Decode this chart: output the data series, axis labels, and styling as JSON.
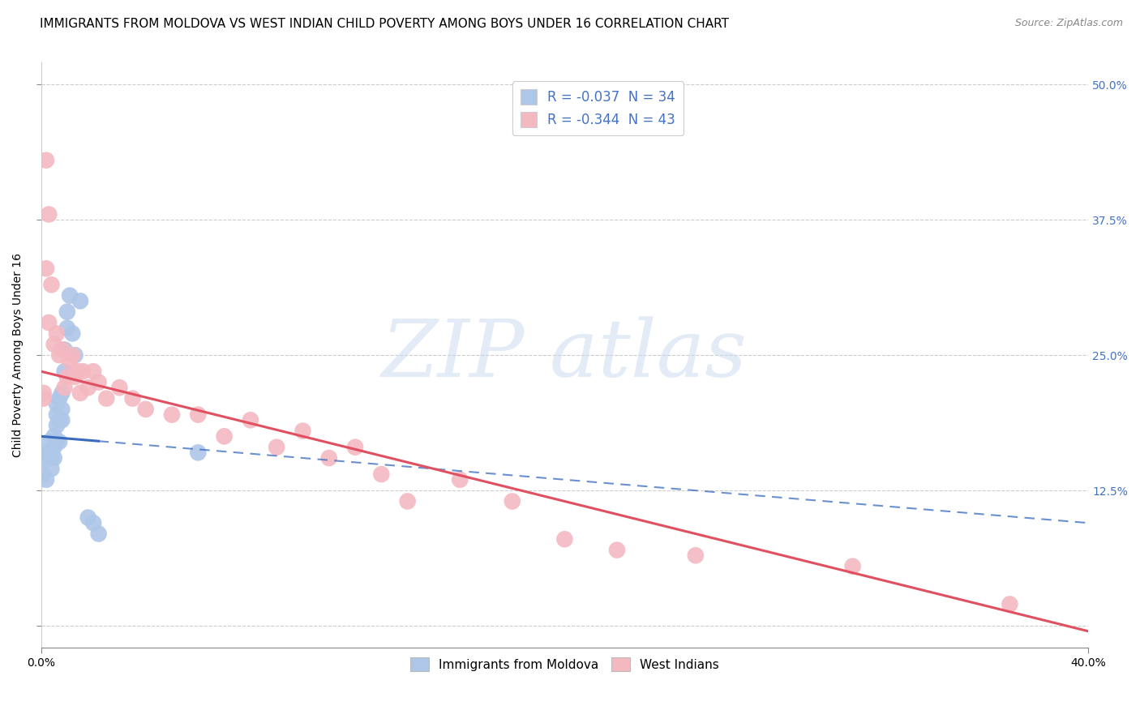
{
  "title": "IMMIGRANTS FROM MOLDOVA VS WEST INDIAN CHILD POVERTY AMONG BOYS UNDER 16 CORRELATION CHART",
  "source": "Source: ZipAtlas.com",
  "ylabel": "Child Poverty Among Boys Under 16",
  "xlim": [
    0.0,
    0.4
  ],
  "ylim": [
    -0.02,
    0.52
  ],
  "ytick_values": [
    0.0,
    0.125,
    0.25,
    0.375,
    0.5
  ],
  "ytick_labels_right": [
    "",
    "12.5%",
    "25.0%",
    "37.5%",
    "50.0%"
  ],
  "legend_items": [
    {
      "label": "R = -0.037  N = 34",
      "color": "#aec6e8"
    },
    {
      "label": "R = -0.344  N = 43",
      "color": "#f4b8c1"
    }
  ],
  "series": [
    {
      "name": "Immigrants from Moldova",
      "color": "#aec6e8",
      "line_color": "#3a6bbf",
      "dash_color": "#6699cc",
      "x": [
        0.001,
        0.001,
        0.002,
        0.002,
        0.003,
        0.003,
        0.003,
        0.004,
        0.004,
        0.005,
        0.005,
        0.005,
        0.006,
        0.006,
        0.006,
        0.006,
        0.007,
        0.007,
        0.007,
        0.008,
        0.008,
        0.008,
        0.009,
        0.009,
        0.01,
        0.01,
        0.011,
        0.012,
        0.013,
        0.015,
        0.018,
        0.02,
        0.022,
        0.06
      ],
      "y": [
        0.155,
        0.14,
        0.16,
        0.135,
        0.155,
        0.17,
        0.16,
        0.145,
        0.155,
        0.175,
        0.165,
        0.155,
        0.205,
        0.195,
        0.185,
        0.17,
        0.21,
        0.19,
        0.17,
        0.215,
        0.2,
        0.19,
        0.235,
        0.255,
        0.29,
        0.275,
        0.305,
        0.27,
        0.25,
        0.3,
        0.1,
        0.095,
        0.085,
        0.16
      ]
    },
    {
      "name": "West Indians",
      "color": "#f4b8c1",
      "line_color": "#e05060",
      "x": [
        0.001,
        0.001,
        0.002,
        0.002,
        0.003,
        0.003,
        0.004,
        0.005,
        0.006,
        0.007,
        0.008,
        0.009,
        0.01,
        0.011,
        0.012,
        0.013,
        0.014,
        0.015,
        0.016,
        0.018,
        0.02,
        0.022,
        0.025,
        0.03,
        0.035,
        0.04,
        0.05,
        0.06,
        0.07,
        0.08,
        0.09,
        0.1,
        0.11,
        0.12,
        0.13,
        0.14,
        0.16,
        0.18,
        0.2,
        0.22,
        0.25,
        0.31,
        0.37
      ],
      "y": [
        0.215,
        0.21,
        0.43,
        0.33,
        0.38,
        0.28,
        0.315,
        0.26,
        0.27,
        0.25,
        0.255,
        0.22,
        0.23,
        0.245,
        0.25,
        0.23,
        0.235,
        0.215,
        0.235,
        0.22,
        0.235,
        0.225,
        0.21,
        0.22,
        0.21,
        0.2,
        0.195,
        0.195,
        0.175,
        0.19,
        0.165,
        0.18,
        0.155,
        0.165,
        0.14,
        0.115,
        0.135,
        0.115,
        0.08,
        0.07,
        0.065,
        0.055,
        0.02
      ]
    }
  ],
  "regression": {
    "moldova": {
      "slope": -0.2,
      "intercept": 0.175
    },
    "westindians": {
      "slope": -0.6,
      "intercept": 0.235
    }
  },
  "regression_dash": {
    "slope": -0.2,
    "intercept": 0.175,
    "x_start": 0.022,
    "x_end": 0.4
  },
  "watermark_text": "ZIP atlas",
  "watermark_color": "#c8d8f0",
  "background_color": "#ffffff",
  "grid_color": "#cccccc",
  "title_fontsize": 11,
  "tick_fontsize": 10,
  "right_tick_color": "#4472c4"
}
